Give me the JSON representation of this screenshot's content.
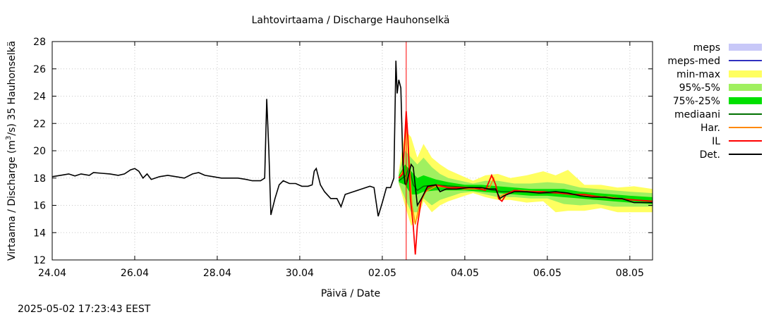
{
  "chart_data": {
    "type": "line",
    "title": "Lahtovirtaama / Discharge  Hauhonselkä",
    "xlabel": "Päivä / Date",
    "ylabel": "Virtaama / Discharge (m³/s)  35 Hauhonselkä",
    "ylabel_parts": {
      "before": "Virtaama / Discharge (m",
      "sup": "3",
      "after": "/s)  35 Hauhonselkä"
    },
    "timestamp": "2025-05-02 17:23:43 EEST",
    "xlim": [
      0,
      14.55
    ],
    "ylim": [
      12,
      28
    ],
    "yticks": [
      12,
      14,
      16,
      18,
      20,
      22,
      24,
      26,
      28
    ],
    "xticks": [
      {
        "x": 0,
        "label": "24.04"
      },
      {
        "x": 2,
        "label": "26.04"
      },
      {
        "x": 4,
        "label": "28.04"
      },
      {
        "x": 6,
        "label": "30.04"
      },
      {
        "x": 8,
        "label": "02.05"
      },
      {
        "x": 10,
        "label": "04.05"
      },
      {
        "x": 12,
        "label": "06.05"
      },
      {
        "x": 14,
        "label": "08.05"
      }
    ],
    "now_marker_x": 8.58,
    "colors": {
      "meps": "#c8c8f8",
      "meps_med": "#3030c0",
      "minmax": "#ffff60",
      "p95_5": "#a0f060",
      "p75_25": "#00e000",
      "median": "#007000",
      "har": "#ff8800",
      "il": "#ff0000",
      "det": "#000000",
      "now_line": "#ff0000"
    },
    "legend": [
      {
        "label": "meps",
        "kind": "band",
        "color": "#c8c8f8"
      },
      {
        "label": "meps-med",
        "kind": "line",
        "color": "#3030c0"
      },
      {
        "label": "min-max",
        "kind": "band",
        "color": "#ffff60"
      },
      {
        "label": "95%-5%",
        "kind": "band",
        "color": "#a0f060"
      },
      {
        "label": "75%-25%",
        "kind": "band",
        "color": "#00e000"
      },
      {
        "label": "mediaani",
        "kind": "line",
        "color": "#007000"
      },
      {
        "label": "Har.",
        "kind": "line",
        "color": "#ff8800"
      },
      {
        "label": "IL",
        "kind": "line",
        "color": "#ff0000"
      },
      {
        "label": "Det.",
        "kind": "line",
        "color": "#000000"
      }
    ],
    "series": {
      "det_observed": [
        [
          0,
          18.1
        ],
        [
          0.2,
          18.2
        ],
        [
          0.4,
          18.3
        ],
        [
          0.55,
          18.15
        ],
        [
          0.7,
          18.3
        ],
        [
          0.9,
          18.2
        ],
        [
          1.0,
          18.4
        ],
        [
          1.2,
          18.35
        ],
        [
          1.4,
          18.3
        ],
        [
          1.6,
          18.2
        ],
        [
          1.75,
          18.3
        ],
        [
          1.9,
          18.6
        ],
        [
          2.0,
          18.7
        ],
        [
          2.1,
          18.5
        ],
        [
          2.2,
          18.0
        ],
        [
          2.3,
          18.3
        ],
        [
          2.4,
          17.9
        ],
        [
          2.6,
          18.1
        ],
        [
          2.8,
          18.2
        ],
        [
          3.0,
          18.1
        ],
        [
          3.2,
          18.0
        ],
        [
          3.4,
          18.3
        ],
        [
          3.55,
          18.4
        ],
        [
          3.7,
          18.2
        ],
        [
          3.9,
          18.1
        ],
        [
          4.1,
          18.0
        ],
        [
          4.3,
          18.0
        ],
        [
          4.5,
          18.0
        ],
        [
          4.7,
          17.9
        ],
        [
          4.85,
          17.8
        ],
        [
          5.05,
          17.8
        ],
        [
          5.15,
          18.0
        ],
        [
          5.2,
          23.8
        ],
        [
          5.25,
          20.0
        ],
        [
          5.3,
          15.3
        ],
        [
          5.4,
          16.5
        ],
        [
          5.5,
          17.5
        ],
        [
          5.6,
          17.8
        ],
        [
          5.75,
          17.6
        ],
        [
          5.9,
          17.6
        ],
        [
          6.05,
          17.4
        ],
        [
          6.2,
          17.4
        ],
        [
          6.3,
          17.5
        ],
        [
          6.35,
          18.5
        ],
        [
          6.4,
          18.7
        ],
        [
          6.5,
          17.5
        ],
        [
          6.6,
          17.0
        ],
        [
          6.75,
          16.5
        ],
        [
          6.9,
          16.5
        ],
        [
          7.0,
          15.9
        ],
        [
          7.1,
          16.8
        ],
        [
          7.3,
          17.0
        ],
        [
          7.5,
          17.2
        ],
        [
          7.7,
          17.4
        ],
        [
          7.8,
          17.3
        ],
        [
          7.9,
          15.2
        ],
        [
          8.0,
          16.2
        ],
        [
          8.1,
          17.3
        ],
        [
          8.2,
          17.3
        ],
        [
          8.28,
          18.0
        ],
        [
          8.33,
          26.6
        ],
        [
          8.36,
          24.2
        ],
        [
          8.4,
          25.2
        ],
        [
          8.45,
          24.6
        ],
        [
          8.5,
          19.0
        ],
        [
          8.55,
          17.6
        ],
        [
          8.58,
          17.5
        ]
      ],
      "det_forecast": [
        [
          8.58,
          17.5
        ],
        [
          8.7,
          19.0
        ],
        [
          8.75,
          18.8
        ],
        [
          8.85,
          16.0
        ],
        [
          8.95,
          16.5
        ],
        [
          9.1,
          17.4
        ],
        [
          9.3,
          17.5
        ],
        [
          9.4,
          17.0
        ],
        [
          9.55,
          17.2
        ],
        [
          9.8,
          17.2
        ],
        [
          10.1,
          17.3
        ],
        [
          10.4,
          17.3
        ],
        [
          10.6,
          17.2
        ],
        [
          10.75,
          17.2
        ],
        [
          10.85,
          16.5
        ],
        [
          10.95,
          16.7
        ],
        [
          11.2,
          17.0
        ],
        [
          11.5,
          17.0
        ],
        [
          11.8,
          16.9
        ],
        [
          12.2,
          17.0
        ],
        [
          12.5,
          16.9
        ],
        [
          12.8,
          16.7
        ],
        [
          13.1,
          16.6
        ],
        [
          13.4,
          16.6
        ],
        [
          13.6,
          16.5
        ],
        [
          13.8,
          16.5
        ],
        [
          14.1,
          16.2
        ],
        [
          14.3,
          16.2
        ],
        [
          14.55,
          16.2
        ]
      ],
      "il": [
        [
          8.4,
          18.0
        ],
        [
          8.5,
          18.3
        ],
        [
          8.58,
          22.9
        ],
        [
          8.62,
          21.0
        ],
        [
          8.68,
          16.5
        ],
        [
          8.75,
          14.5
        ],
        [
          8.8,
          12.4
        ],
        [
          8.85,
          14.5
        ],
        [
          8.95,
          16.5
        ],
        [
          9.1,
          17.3
        ],
        [
          9.3,
          17.5
        ],
        [
          9.6,
          17.3
        ],
        [
          9.9,
          17.3
        ],
        [
          10.2,
          17.3
        ],
        [
          10.5,
          17.1
        ],
        [
          10.65,
          18.2
        ],
        [
          10.75,
          17.5
        ],
        [
          10.82,
          16.5
        ],
        [
          10.9,
          16.3
        ],
        [
          11.0,
          16.8
        ],
        [
          11.2,
          17.1
        ],
        [
          11.5,
          17.0
        ],
        [
          11.9,
          17.0
        ],
        [
          12.3,
          16.9
        ],
        [
          12.6,
          16.8
        ],
        [
          12.9,
          16.8
        ],
        [
          13.3,
          16.6
        ],
        [
          13.7,
          16.5
        ],
        [
          14.1,
          16.4
        ],
        [
          14.55,
          16.3
        ]
      ],
      "har": [
        [
          8.4,
          18.0
        ],
        [
          8.5,
          18.5
        ],
        [
          8.58,
          22.5
        ],
        [
          8.65,
          19.5
        ],
        [
          8.72,
          16.0
        ],
        [
          8.8,
          14.6
        ],
        [
          8.9,
          16.0
        ],
        [
          9.05,
          17.0
        ],
        [
          9.3,
          17.4
        ],
        [
          9.6,
          17.3
        ],
        [
          10.0,
          17.2
        ],
        [
          10.4,
          17.2
        ],
        [
          10.6,
          17.3
        ],
        [
          10.7,
          18.0
        ],
        [
          10.82,
          16.6
        ],
        [
          10.95,
          16.8
        ],
        [
          11.3,
          17.1
        ],
        [
          11.8,
          17.0
        ],
        [
          12.3,
          16.9
        ],
        [
          12.9,
          16.7
        ],
        [
          13.5,
          16.6
        ],
        [
          14.0,
          16.4
        ],
        [
          14.55,
          16.3
        ]
      ],
      "median": [
        [
          8.4,
          17.8
        ],
        [
          8.58,
          18.2
        ],
        [
          8.65,
          18.8
        ],
        [
          8.75,
          17.5
        ],
        [
          8.85,
          17.1
        ],
        [
          9.0,
          17.4
        ],
        [
          9.3,
          17.5
        ],
        [
          9.7,
          17.4
        ],
        [
          10.1,
          17.3
        ],
        [
          10.5,
          17.2
        ],
        [
          10.9,
          17.0
        ],
        [
          11.3,
          17.0
        ],
        [
          11.8,
          16.9
        ],
        [
          12.3,
          16.9
        ],
        [
          12.9,
          16.7
        ],
        [
          13.5,
          16.6
        ],
        [
          14.0,
          16.4
        ],
        [
          14.55,
          16.3
        ]
      ],
      "minmax_band": [
        [
          8.4,
          17.6,
          18.5
        ],
        [
          8.55,
          16.0,
          21.5
        ],
        [
          8.7,
          14.5,
          21.0
        ],
        [
          8.85,
          15.0,
          19.5
        ],
        [
          9.0,
          16.3,
          20.5
        ],
        [
          9.2,
          15.5,
          19.5
        ],
        [
          9.4,
          16.0,
          19.0
        ],
        [
          9.6,
          16.3,
          18.6
        ],
        [
          9.9,
          16.6,
          18.2
        ],
        [
          10.2,
          16.9,
          17.8
        ],
        [
          10.5,
          16.6,
          18.2
        ],
        [
          10.8,
          16.4,
          18.3
        ],
        [
          11.1,
          16.4,
          18.0
        ],
        [
          11.5,
          16.2,
          18.2
        ],
        [
          11.9,
          16.3,
          18.5
        ],
        [
          12.2,
          15.5,
          18.2
        ],
        [
          12.5,
          15.6,
          18.6
        ],
        [
          12.9,
          15.6,
          17.5
        ],
        [
          13.3,
          15.8,
          17.5
        ],
        [
          13.7,
          15.5,
          17.3
        ],
        [
          14.1,
          15.5,
          17.4
        ],
        [
          14.55,
          15.5,
          17.2
        ]
      ],
      "p95_5_band": [
        [
          8.4,
          17.6,
          18.4
        ],
        [
          8.55,
          16.5,
          20.0
        ],
        [
          8.7,
          15.5,
          19.5
        ],
        [
          8.85,
          15.5,
          19.0
        ],
        [
          9.0,
          16.5,
          19.5
        ],
        [
          9.2,
          16.0,
          18.8
        ],
        [
          9.4,
          16.4,
          18.3
        ],
        [
          9.6,
          16.6,
          18.0
        ],
        [
          9.9,
          16.9,
          17.8
        ],
        [
          10.2,
          17.0,
          17.6
        ],
        [
          10.5,
          16.8,
          17.8
        ],
        [
          10.8,
          16.6,
          17.8
        ],
        [
          11.2,
          16.6,
          17.6
        ],
        [
          11.6,
          16.5,
          17.6
        ],
        [
          12.0,
          16.5,
          17.7
        ],
        [
          12.4,
          16.1,
          17.6
        ],
        [
          12.8,
          16.0,
          17.3
        ],
        [
          13.2,
          16.1,
          17.2
        ],
        [
          13.6,
          15.9,
          17.1
        ],
        [
          14.0,
          15.9,
          17.0
        ],
        [
          14.55,
          15.9,
          16.9
        ]
      ],
      "p75_25_band": [
        [
          8.4,
          17.7,
          18.2
        ],
        [
          8.55,
          17.5,
          19.0
        ],
        [
          8.7,
          16.8,
          18.5
        ],
        [
          8.85,
          16.8,
          18.0
        ],
        [
          9.0,
          17.0,
          18.2
        ],
        [
          9.3,
          17.1,
          17.9
        ],
        [
          9.6,
          17.1,
          17.7
        ],
        [
          10.0,
          17.1,
          17.5
        ],
        [
          10.4,
          17.0,
          17.5
        ],
        [
          10.8,
          16.9,
          17.4
        ],
        [
          11.2,
          16.8,
          17.3
        ],
        [
          11.6,
          16.7,
          17.2
        ],
        [
          12.0,
          16.7,
          17.2
        ],
        [
          12.4,
          16.6,
          17.2
        ],
        [
          12.8,
          16.5,
          17.0
        ],
        [
          13.2,
          16.4,
          16.9
        ],
        [
          13.6,
          16.3,
          16.8
        ],
        [
          14.0,
          16.2,
          16.7
        ],
        [
          14.55,
          16.1,
          16.6
        ]
      ]
    }
  }
}
